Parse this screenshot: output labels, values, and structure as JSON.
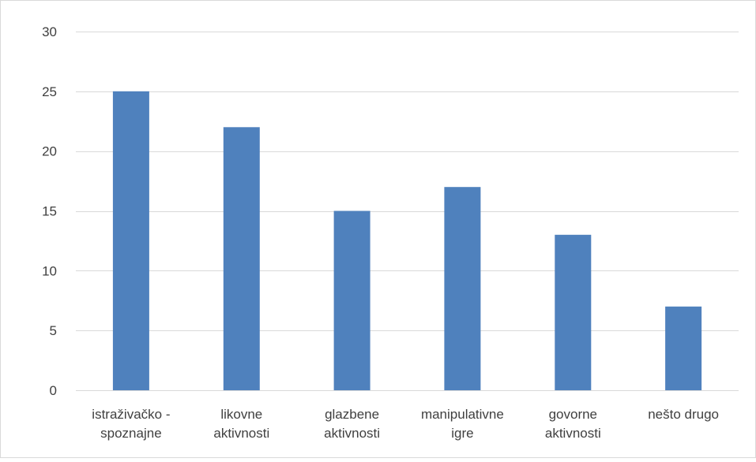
{
  "chart_data": {
    "type": "bar",
    "categories": [
      [
        "istraživačko -",
        "spoznajne"
      ],
      [
        "likovne",
        "aktivnosti"
      ],
      [
        "glazbene",
        "aktivnosti"
      ],
      [
        "manipulativne",
        "igre"
      ],
      [
        "govorne",
        "aktivnosti"
      ],
      [
        "nešto drugo"
      ]
    ],
    "values": [
      25,
      22,
      15,
      17,
      13,
      7
    ],
    "ylim": [
      0,
      30
    ],
    "yticks": [
      0,
      5,
      10,
      15,
      20,
      25,
      30
    ],
    "grid": true,
    "legend": "none",
    "title": "",
    "xlabel": "",
    "ylabel": "",
    "colors": {
      "bar": "#4f81bd",
      "grid": "#d9d9d9",
      "border": "#d9d9d9",
      "text": "#404040"
    }
  }
}
